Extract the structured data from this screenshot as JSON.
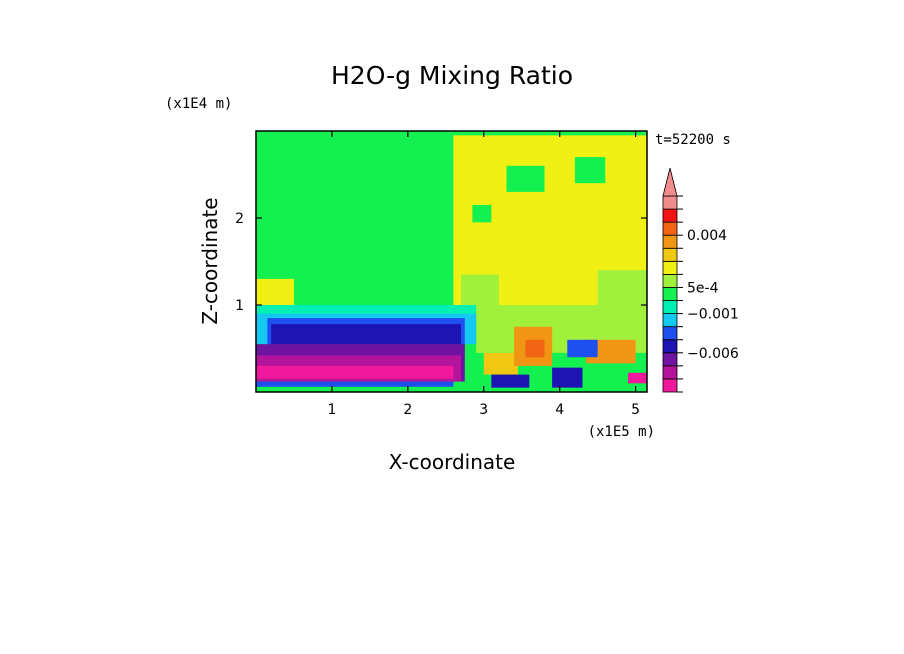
{
  "chart_data": {
    "type": "heatmap",
    "title": "H2O-g Mixing Ratio",
    "xlabel": "X-coordinate",
    "ylabel": "Z-coordinate",
    "x_scale_label": "(x1E5 m)",
    "y_scale_label": "(x1E4 m)",
    "time_label": "t=52200 s",
    "xlim": [
      0,
      5.15
    ],
    "ylim": [
      0,
      3.0
    ],
    "x_ticks": [
      1,
      2,
      3,
      4,
      5
    ],
    "x_tick_labels": [
      "1",
      "2",
      "3",
      "4",
      "5"
    ],
    "y_ticks": [
      1,
      2
    ],
    "y_tick_labels": [
      "1",
      "2"
    ],
    "colorbar": {
      "colors": [
        "#f0189c",
        "#b4149c",
        "#6e14a0",
        "#1e14b4",
        "#1e50f0",
        "#14c8f0",
        "#00f0b4",
        "#14f050",
        "#a0f03c",
        "#f0f014",
        "#f0c814",
        "#f09614",
        "#f06414",
        "#f01414",
        "#f08c8c"
      ],
      "labels": [
        "0.004",
        "5e-4",
        "−0.001",
        "−0.006"
      ],
      "extend": "max"
    },
    "regions": [
      {
        "x0": 0.0,
        "x1": 5.15,
        "z0": 0.0,
        "z1": 3.0,
        "color": "#14f050"
      },
      {
        "x0": 2.6,
        "x1": 5.15,
        "z0": 1.0,
        "z1": 2.95,
        "color": "#f0f014"
      },
      {
        "x0": 2.85,
        "x1": 3.1,
        "z0": 1.95,
        "z1": 2.15,
        "color": "#14f050"
      },
      {
        "x0": 3.3,
        "x1": 3.8,
        "z0": 2.3,
        "z1": 2.6,
        "color": "#14f050"
      },
      {
        "x0": 4.2,
        "x1": 4.6,
        "z0": 2.4,
        "z1": 2.7,
        "color": "#14f050"
      },
      {
        "x0": 2.7,
        "x1": 3.2,
        "z0": 1.0,
        "z1": 1.35,
        "color": "#a0f03c"
      },
      {
        "x0": 4.5,
        "x1": 5.15,
        "z0": 1.0,
        "z1": 1.4,
        "color": "#a0f03c"
      },
      {
        "x0": 0.0,
        "x1": 0.5,
        "z0": 1.0,
        "z1": 1.3,
        "color": "#f0f014"
      },
      {
        "x0": 0.0,
        "x1": 5.15,
        "z0": 0.6,
        "z1": 1.0,
        "color": "#00f0b4"
      },
      {
        "x0": 2.9,
        "x1": 5.15,
        "z0": 0.45,
        "z1": 1.0,
        "color": "#a0f03c"
      },
      {
        "x0": 0.0,
        "x1": 2.9,
        "z0": 0.55,
        "z1": 0.9,
        "color": "#14c8f0"
      },
      {
        "x0": 0.15,
        "x1": 2.75,
        "z0": 0.42,
        "z1": 0.85,
        "color": "#1e50f0"
      },
      {
        "x0": 0.2,
        "x1": 2.7,
        "z0": 0.38,
        "z1": 0.78,
        "color": "#1e14b4"
      },
      {
        "x0": 0.0,
        "x1": 2.75,
        "z0": 0.12,
        "z1": 0.55,
        "color": "#6e14a0"
      },
      {
        "x0": 0.0,
        "x1": 2.7,
        "z0": 0.12,
        "z1": 0.42,
        "color": "#b4149c"
      },
      {
        "x0": 0.0,
        "x1": 2.6,
        "z0": 0.15,
        "z1": 0.3,
        "color": "#f0189c"
      },
      {
        "x0": 0.0,
        "x1": 2.6,
        "z0": 0.06,
        "z1": 0.12,
        "color": "#1e50f0"
      },
      {
        "x0": 3.0,
        "x1": 3.45,
        "z0": 0.2,
        "z1": 0.45,
        "color": "#f0c814"
      },
      {
        "x0": 3.4,
        "x1": 3.9,
        "z0": 0.3,
        "z1": 0.75,
        "color": "#f09614"
      },
      {
        "x0": 3.55,
        "x1": 3.8,
        "z0": 0.4,
        "z1": 0.6,
        "color": "#f06414"
      },
      {
        "x0": 4.35,
        "x1": 5.0,
        "z0": 0.33,
        "z1": 0.6,
        "color": "#f09614"
      },
      {
        "x0": 3.1,
        "x1": 3.6,
        "z0": 0.05,
        "z1": 0.2,
        "color": "#1e14b4"
      },
      {
        "x0": 3.9,
        "x1": 4.3,
        "z0": 0.05,
        "z1": 0.28,
        "color": "#1e14b4"
      },
      {
        "x0": 4.1,
        "x1": 4.5,
        "z0": 0.4,
        "z1": 0.6,
        "color": "#1e50f0"
      },
      {
        "x0": 4.9,
        "x1": 5.15,
        "z0": 0.1,
        "z1": 0.22,
        "color": "#f0189c"
      }
    ]
  }
}
